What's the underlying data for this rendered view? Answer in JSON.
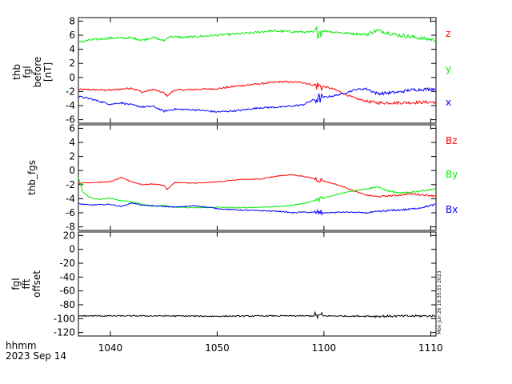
{
  "footer": {
    "time_unit": "hhmm",
    "date": "2023 Sep 14",
    "timestamp": "Mon Jun 26 18:35:55 2023"
  },
  "x_axis": {
    "ticks": [
      "1040",
      "1050",
      "1100",
      "1110"
    ],
    "tick_minutes": [
      640,
      650,
      660,
      670
    ],
    "range_minutes": [
      637,
      670.5
    ]
  },
  "chart_data": [
    {
      "type": "line",
      "ylabel": [
        "thb",
        "fgl",
        "before",
        "[nT]"
      ],
      "ylim": [
        -6.5,
        8.5
      ],
      "yticks": [
        -6,
        -4,
        -2,
        0,
        2,
        4,
        6,
        8
      ],
      "x_start": 637,
      "x_end": 670.5,
      "series": [
        {
          "name": "z",
          "color": "#ff0000",
          "noise": 0.12,
          "values": [
            [
              637,
              -1.7
            ],
            [
              640,
              -1.8
            ],
            [
              642,
              -1.5
            ],
            [
              643,
              -2.1
            ],
            [
              644,
              -1.7
            ],
            [
              645,
              -2.2
            ],
            [
              645.3,
              -2.6
            ],
            [
              646,
              -1.8
            ],
            [
              648,
              -1.7
            ],
            [
              650,
              -1.6
            ],
            [
              652,
              -1.2
            ],
            [
              654,
              -0.9
            ],
            [
              656,
              -0.6
            ],
            [
              658,
              -0.7
            ],
            [
              659,
              -1.1
            ],
            [
              660,
              -1.3
            ],
            [
              661,
              -1.7
            ],
            [
              662,
              -2.4
            ],
            [
              663,
              -3.0
            ],
            [
              664,
              -3.4
            ],
            [
              665,
              -3.6
            ],
            [
              667,
              -3.6
            ],
            [
              670.5,
              -3.5
            ]
          ]
        },
        {
          "name": "y",
          "color": "#00ee00",
          "noise": 0.15,
          "values": [
            [
              637,
              5.0
            ],
            [
              638,
              5.3
            ],
            [
              640,
              5.6
            ],
            [
              642,
              5.6
            ],
            [
              643,
              5.3
            ],
            [
              644,
              5.7
            ],
            [
              645,
              5.2
            ],
            [
              645.5,
              5.8
            ],
            [
              647,
              5.7
            ],
            [
              649,
              5.9
            ],
            [
              651,
              6.1
            ],
            [
              653,
              6.3
            ],
            [
              655,
              6.6
            ],
            [
              657,
              6.5
            ],
            [
              659,
              6.4
            ],
            [
              660,
              6.6
            ],
            [
              662,
              6.3
            ],
            [
              664,
              6.1
            ],
            [
              665,
              6.7
            ],
            [
              667,
              6.0
            ],
            [
              668,
              5.8
            ],
            [
              670.5,
              5.3
            ]
          ]
        },
        {
          "name": "x",
          "color": "#0000ff",
          "noise": 0.12,
          "values": [
            [
              637,
              -2.7
            ],
            [
              638,
              -3.0
            ],
            [
              639,
              -3.4
            ],
            [
              640,
              -3.8
            ],
            [
              641,
              -3.6
            ],
            [
              642,
              -3.9
            ],
            [
              643,
              -4.2
            ],
            [
              644,
              -4.1
            ],
            [
              645,
              -4.8
            ],
            [
              646,
              -4.5
            ],
            [
              648,
              -4.6
            ],
            [
              650,
              -4.9
            ],
            [
              652,
              -4.7
            ],
            [
              654,
              -4.3
            ],
            [
              656,
              -4.2
            ],
            [
              658,
              -3.9
            ],
            [
              659,
              -3.2
            ],
            [
              660,
              -2.8
            ],
            [
              661,
              -2.6
            ],
            [
              662,
              -2.2
            ],
            [
              663,
              -1.7
            ],
            [
              664,
              -1.6
            ],
            [
              665,
              -2.3
            ],
            [
              667,
              -2.1
            ],
            [
              668,
              -1.8
            ],
            [
              670.5,
              -1.6
            ]
          ]
        }
      ]
    },
    {
      "type": "line",
      "ylabel": [
        "thb_fgs"
      ],
      "ylim": [
        -8.5,
        6.5
      ],
      "yticks": [
        -8,
        -6,
        -4,
        -2,
        0,
        2,
        4,
        6
      ],
      "x_start": 637,
      "x_end": 670.5,
      "series": [
        {
          "name": "Bz",
          "color": "#ff0000",
          "noise": 0.06,
          "values": [
            [
              637,
              -1.8
            ],
            [
              638,
              -1.7
            ],
            [
              640,
              -1.6
            ],
            [
              641,
              -1.0
            ],
            [
              642,
              -1.6
            ],
            [
              643,
              -2.0
            ],
            [
              644,
              -1.9
            ],
            [
              645,
              -2.1
            ],
            [
              645.3,
              -2.7
            ],
            [
              646,
              -1.7
            ],
            [
              648,
              -1.8
            ],
            [
              650,
              -1.6
            ],
            [
              652,
              -1.3
            ],
            [
              654,
              -1.2
            ],
            [
              656,
              -0.7
            ],
            [
              657,
              -0.6
            ],
            [
              658,
              -0.8
            ],
            [
              659,
              -1.1
            ],
            [
              660,
              -1.5
            ],
            [
              661,
              -1.9
            ],
            [
              662,
              -2.4
            ],
            [
              663,
              -3.0
            ],
            [
              664,
              -3.5
            ],
            [
              665,
              -3.7
            ],
            [
              667,
              -3.5
            ],
            [
              668,
              -3.3
            ],
            [
              670.5,
              -3.6
            ]
          ]
        },
        {
          "name": "By",
          "color": "#00ee00",
          "noise": 0.06,
          "values": [
            [
              637,
              -1.0
            ],
            [
              637.4,
              -3.0
            ],
            [
              638,
              -3.8
            ],
            [
              639,
              -4.1
            ],
            [
              640,
              -3.9
            ],
            [
              641,
              -4.3
            ],
            [
              642,
              -4.4
            ],
            [
              643,
              -4.8
            ],
            [
              644,
              -5.1
            ],
            [
              645,
              -4.9
            ],
            [
              646,
              -5.2
            ],
            [
              648,
              -5.3
            ],
            [
              650,
              -5.2
            ],
            [
              652,
              -5.3
            ],
            [
              654,
              -5.2
            ],
            [
              656,
              -5.1
            ],
            [
              657,
              -4.9
            ],
            [
              658,
              -4.7
            ],
            [
              659,
              -4.3
            ],
            [
              660,
              -3.9
            ],
            [
              661,
              -3.5
            ],
            [
              662,
              -3.1
            ],
            [
              663,
              -2.8
            ],
            [
              664,
              -2.6
            ],
            [
              665,
              -2.3
            ],
            [
              666,
              -2.9
            ],
            [
              667,
              -3.2
            ],
            [
              668,
              -3.1
            ],
            [
              669,
              -2.9
            ],
            [
              670.5,
              -2.6
            ]
          ]
        },
        {
          "name": "Bx",
          "color": "#0000ff",
          "noise": 0.07,
          "values": [
            [
              637,
              -4.7
            ],
            [
              638,
              -4.9
            ],
            [
              640,
              -4.8
            ],
            [
              641,
              -5.1
            ],
            [
              642,
              -4.6
            ],
            [
              643,
              -4.9
            ],
            [
              645,
              -5.1
            ],
            [
              646,
              -5.2
            ],
            [
              648,
              -5.0
            ],
            [
              650,
              -5.4
            ],
            [
              652,
              -5.6
            ],
            [
              654,
              -5.7
            ],
            [
              656,
              -5.8
            ],
            [
              657,
              -6.0
            ],
            [
              658,
              -5.9
            ],
            [
              660,
              -6.0
            ],
            [
              662,
              -5.9
            ],
            [
              664,
              -6.0
            ],
            [
              666,
              -5.7
            ],
            [
              668,
              -5.5
            ],
            [
              669,
              -5.3
            ],
            [
              670.5,
              -4.8
            ]
          ]
        }
      ]
    },
    {
      "type": "line",
      "ylabel": [
        "fgl",
        "fft",
        "offset"
      ],
      "ylim": [
        -125,
        25
      ],
      "yticks": [
        -120,
        -100,
        -80,
        -60,
        -40,
        -20,
        0,
        20
      ],
      "x_start": 637,
      "x_end": 670.5,
      "series": [
        {
          "name": "",
          "color": "#000000",
          "noise": 0.9,
          "values": [
            [
              637,
              -96
            ],
            [
              645,
              -96
            ],
            [
              650,
              -96.5
            ],
            [
              655,
              -96
            ],
            [
              659,
              -96
            ],
            [
              660,
              -96
            ],
            [
              665,
              -96.5
            ],
            [
              670.5,
              -96
            ]
          ]
        }
      ]
    }
  ]
}
